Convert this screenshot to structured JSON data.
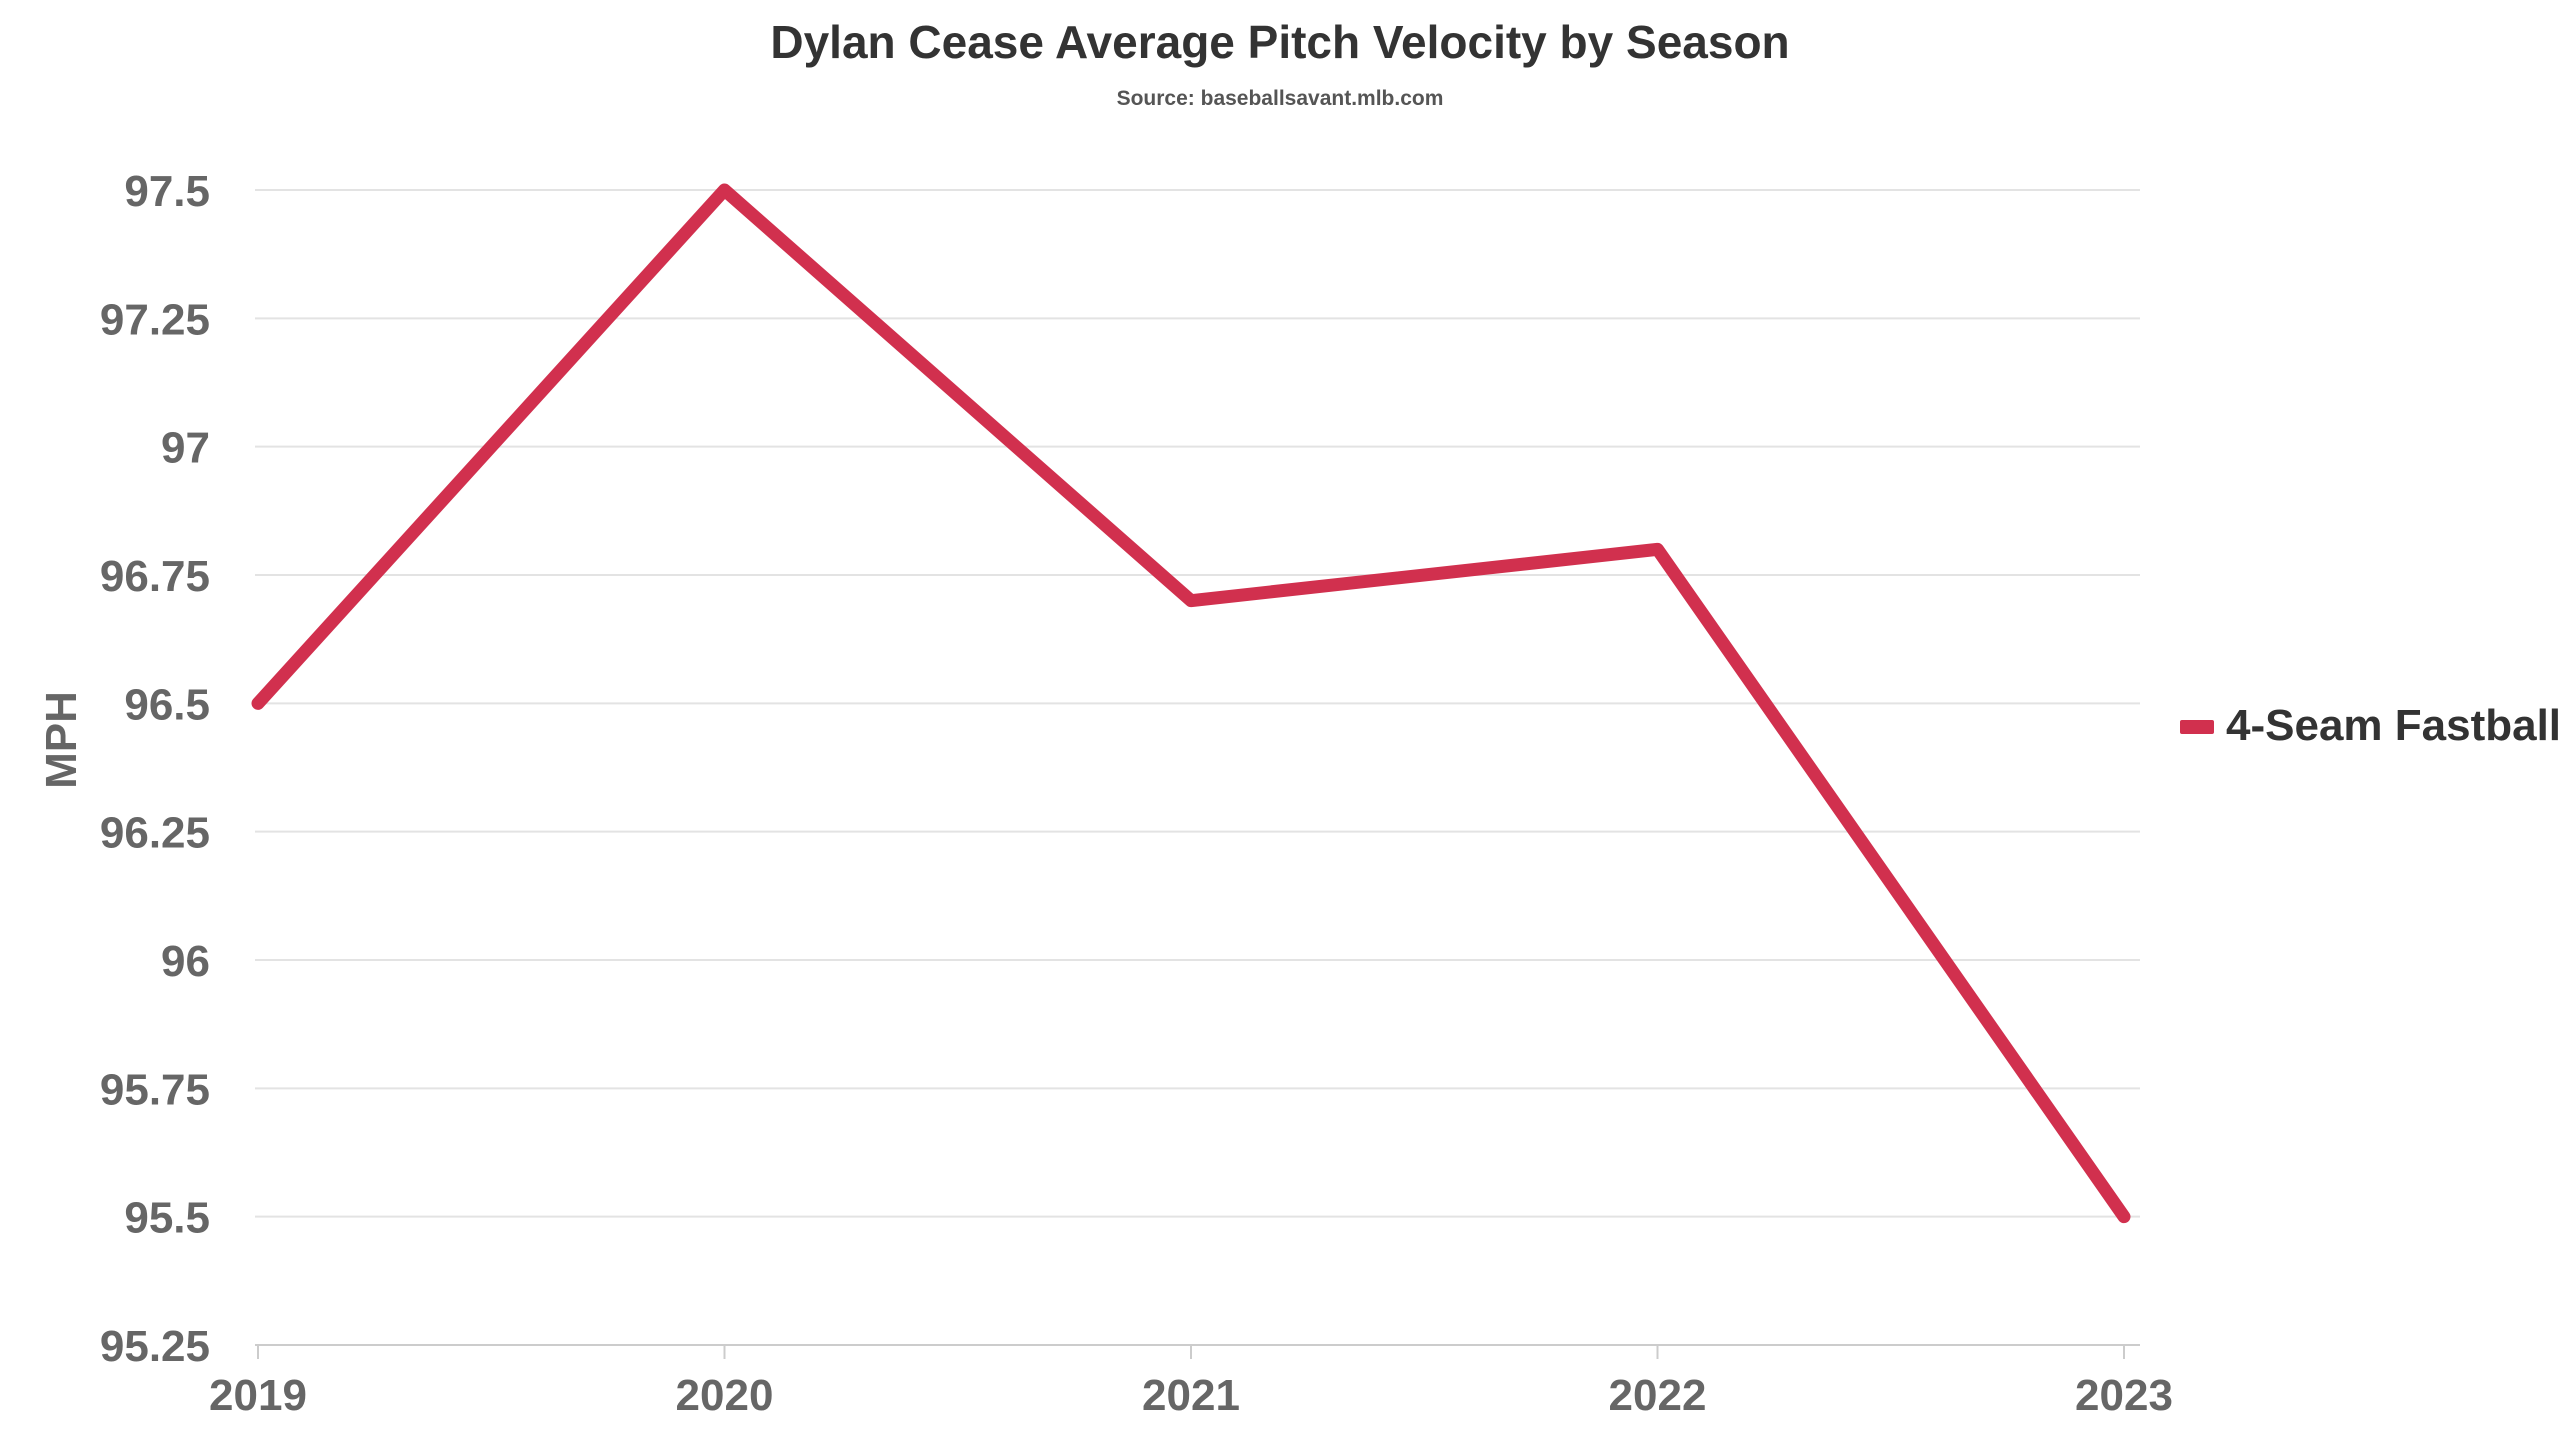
{
  "chart_data": {
    "type": "line",
    "title": "Dylan Cease Average Pitch Velocity by Season",
    "subtitle": "Source: baseballsavant.mlb.com",
    "xlabel": "",
    "ylabel": "MPH",
    "categories": [
      "2019",
      "2020",
      "2021",
      "2022",
      "2023"
    ],
    "y_ticks": [
      "95.25",
      "95.5",
      "95.75",
      "96",
      "96.25",
      "96.5",
      "96.75",
      "97",
      "97.25",
      "97.5"
    ],
    "ylim": [
      95.25,
      97.5
    ],
    "grid": true,
    "legend_position": "right",
    "series": [
      {
        "name": "4-Seam Fastball",
        "color": "#d1304e",
        "values": [
          96.5,
          97.5,
          96.7,
          96.8,
          95.5
        ]
      }
    ]
  }
}
